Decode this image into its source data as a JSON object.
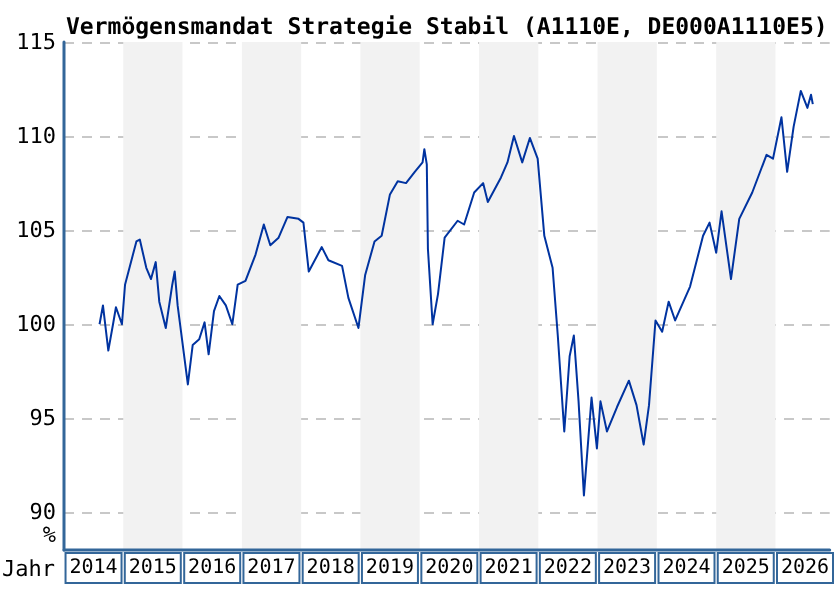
{
  "chart_data": {
    "type": "line",
    "title": "Vermögensmandat Strategie Stabil (A1110E, DE000A1110E5)",
    "xlabel": "Jahr",
    "ylabel": "%",
    "x": [
      "2014-08-08",
      "2014-08-29",
      "2014-10-01",
      "2014-10-30",
      "2014-11-17",
      "2014-12-24",
      "2015-01-12",
      "2015-03-23",
      "2015-04-13",
      "2015-05-23",
      "2015-06-21",
      "2015-07-20",
      "2015-08-11",
      "2015-09-20",
      "2015-10-30",
      "2015-11-14",
      "2015-12-02",
      "2016-02-03",
      "2016-03-04",
      "2016-04-13",
      "2016-05-16",
      "2016-06-10",
      "2016-07-13",
      "2016-08-15",
      "2016-09-24",
      "2016-11-03",
      "2016-12-06",
      "2017-01-23",
      "2017-03-26",
      "2017-05-16",
      "2017-06-25",
      "2017-08-15",
      "2017-10-09",
      "2017-12-16",
      "2018-01-15",
      "2018-02-17",
      "2018-05-08",
      "2018-06-18",
      "2018-09-10",
      "2018-10-19",
      "2018-12-20",
      "2019-01-30",
      "2019-03-29",
      "2019-05-12",
      "2019-07-02",
      "2019-08-19",
      "2019-10-09",
      "2019-12-02",
      "2020-01-19",
      "2020-01-30",
      "2020-02-14",
      "2020-02-21",
      "2020-03-21",
      "2020-04-23",
      "2020-06-03",
      "2020-08-22",
      "2020-10-01",
      "2020-12-02",
      "2021-01-26",
      "2021-02-24",
      "2021-05-16",
      "2021-06-25",
      "2021-08-04",
      "2021-09-24",
      "2021-11-10",
      "2021-12-28",
      "2022-02-07",
      "2022-03-30",
      "2022-05-01",
      "2022-06-10",
      "2022-07-13",
      "2022-08-08",
      "2022-09-06",
      "2022-10-09",
      "2022-11-25",
      "2022-12-28",
      "2023-01-19",
      "2023-02-28",
      "2023-05-01",
      "2023-07-13",
      "2023-08-29",
      "2023-10-12",
      "2023-11-14",
      "2023-12-24",
      "2024-02-03",
      "2024-03-14",
      "2024-04-23",
      "2024-07-24",
      "2024-10-12",
      "2024-11-21",
      "2025-01-01",
      "2025-02-03",
      "2025-04-02",
      "2025-05-23",
      "2025-08-11",
      "2025-11-07",
      "2025-12-17",
      "2026-02-07",
      "2026-03-14",
      "2026-04-23",
      "2026-06-06",
      "2026-07-17",
      "2026-08-08",
      "2026-08-19"
    ],
    "series": [
      {
        "color": "#0033a0",
        "values": [
          100.0,
          101.0,
          98.6,
          100.0,
          100.9,
          100.0,
          102.1,
          104.4,
          104.5,
          103.0,
          102.4,
          103.3,
          101.2,
          99.8,
          102.1,
          102.8,
          101.0,
          96.8,
          98.9,
          99.2,
          100.1,
          98.4,
          100.7,
          101.5,
          101.0,
          100.0,
          102.1,
          102.3,
          103.7,
          105.3,
          104.2,
          104.6,
          105.7,
          105.6,
          105.4,
          102.8,
          104.1,
          103.4,
          103.1,
          101.4,
          99.8,
          102.6,
          104.4,
          104.7,
          106.9,
          107.6,
          107.5,
          108.1,
          108.6,
          109.3,
          108.5,
          104.0,
          100.0,
          101.6,
          104.6,
          105.5,
          105.3,
          107.0,
          107.5,
          106.5,
          107.8,
          108.6,
          110.0,
          108.6,
          109.9,
          108.8,
          104.7,
          103.0,
          99.4,
          94.3,
          98.3,
          99.4,
          95.9,
          90.9,
          96.1,
          93.4,
          95.9,
          94.3,
          95.6,
          97.0,
          95.7,
          93.6,
          95.7,
          100.2,
          99.6,
          101.2,
          100.2,
          102.0,
          104.7,
          105.4,
          103.8,
          106.0,
          102.4,
          105.6,
          107.0,
          109.0,
          108.8,
          111.0,
          108.1,
          110.5,
          112.4,
          111.5,
          112.2,
          111.7
        ]
      }
    ],
    "xlim": [
      "2014-01-01",
      "2026-12-01"
    ],
    "xticks": [
      {
        "value": "2014-07-02",
        "label": "2014"
      },
      {
        "value": "2015-07-02",
        "label": "2015"
      },
      {
        "value": "2016-07-02",
        "label": "2016"
      },
      {
        "value": "2017-07-02",
        "label": "2017"
      },
      {
        "value": "2018-07-02",
        "label": "2018"
      },
      {
        "value": "2019-07-02",
        "label": "2019"
      },
      {
        "value": "2020-07-02",
        "label": "2020"
      },
      {
        "value": "2021-07-02",
        "label": "2021"
      },
      {
        "value": "2022-07-02",
        "label": "2022"
      },
      {
        "value": "2023-07-02",
        "label": "2023"
      },
      {
        "value": "2024-07-02",
        "label": "2024"
      },
      {
        "value": "2025-07-02",
        "label": "2025"
      },
      {
        "value": "2026-07-02",
        "label": "2026"
      }
    ],
    "ylim": [
      88,
      115
    ],
    "yticks": [
      90,
      95,
      100,
      105,
      110,
      115
    ],
    "bands": [
      {
        "axis": "x",
        "from": "2015-01-01",
        "to": "2016-01-01",
        "color": "#f2f2f2"
      },
      {
        "axis": "x",
        "from": "2017-01-01",
        "to": "2018-01-01",
        "color": "#f2f2f2"
      },
      {
        "axis": "x",
        "from": "2019-01-01",
        "to": "2020-01-01",
        "color": "#f2f2f2"
      },
      {
        "axis": "x",
        "from": "2021-01-01",
        "to": "2022-01-01",
        "color": "#f2f2f2"
      },
      {
        "axis": "x",
        "from": "2023-01-01",
        "to": "2024-01-01",
        "color": "#f2f2f2"
      },
      {
        "axis": "x",
        "from": "2025-01-01",
        "to": "2026-01-01",
        "color": "#f2f2f2"
      }
    ],
    "grid": "y",
    "marker": "none",
    "line_style": "solid"
  }
}
